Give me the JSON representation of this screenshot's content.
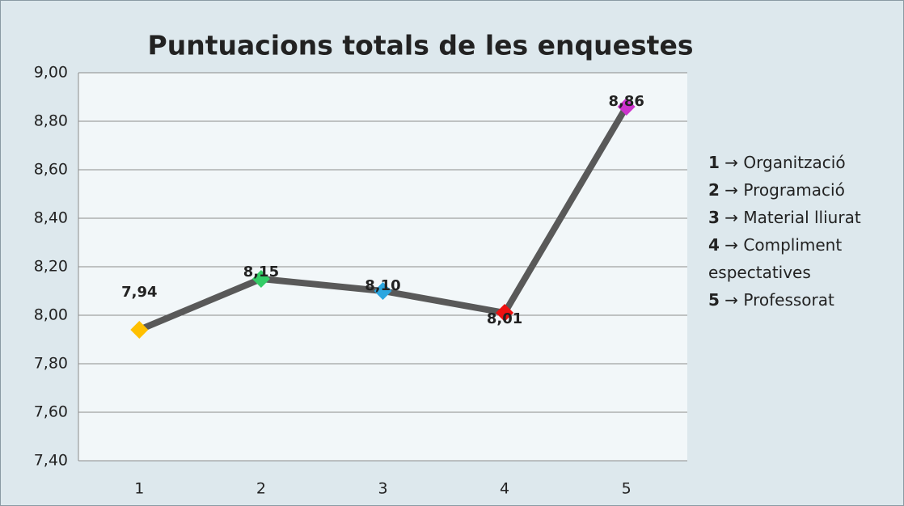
{
  "chart_data": {
    "type": "line",
    "title": "Puntuacions totals de les enquestes",
    "categories": [
      "1",
      "2",
      "3",
      "4",
      "5"
    ],
    "values": [
      7.94,
      8.15,
      8.1,
      8.01,
      8.86
    ],
    "value_labels": [
      "7,94",
      "8,15",
      "8,10",
      "8,01",
      "8,86"
    ],
    "color": "#595959",
    "point_colors": [
      "#ffc000",
      "#33cc66",
      "#2ba6e0",
      "#ee1111",
      "#cc33cc"
    ],
    "ylim": [
      7.4,
      9.0
    ],
    "yticks": [
      {
        "value": 7.4,
        "label": "7,40"
      },
      {
        "value": 7.6,
        "label": "7,60"
      },
      {
        "value": 7.8,
        "label": "7,80"
      },
      {
        "value": 8.0,
        "label": "8,00"
      },
      {
        "value": 8.2,
        "label": "8,20"
      },
      {
        "value": 8.4,
        "label": "8,40"
      },
      {
        "value": 8.6,
        "label": "8,60"
      },
      {
        "value": 8.8,
        "label": "8,80"
      },
      {
        "value": 9.0,
        "label": "9,00"
      }
    ],
    "grid": true,
    "legend_items": [
      {
        "key": "1",
        "text": "→ Organització"
      },
      {
        "key": "2",
        "text": "→ Programació"
      },
      {
        "key": "3",
        "text": "→ Material lliurat"
      },
      {
        "key": "4",
        "text": "→ Compliment espectatives"
      },
      {
        "key": "5",
        "text": "→ Professorat"
      }
    ]
  }
}
